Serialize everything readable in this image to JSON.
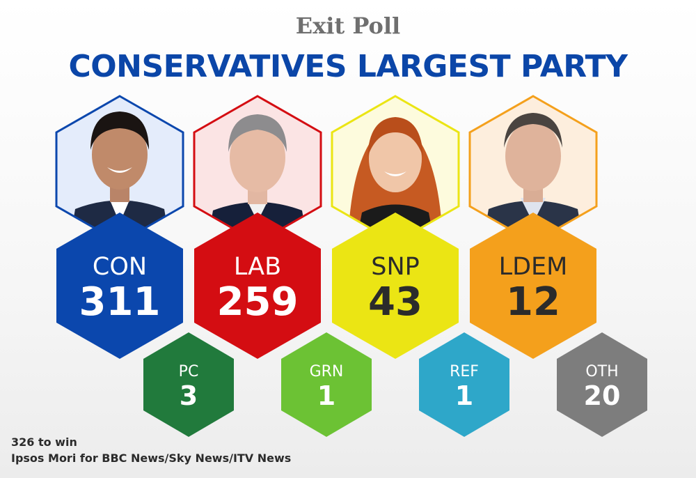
{
  "header": {
    "kicker": "Exit Poll",
    "title": "CONSERVATIVES LARGEST PARTY"
  },
  "parties_major": [
    {
      "code": "CON",
      "seats": "311",
      "color": "#0b47ad",
      "border": "#0b47ad",
      "tint": "#e4ecfb",
      "text": "#ffffff"
    },
    {
      "code": "LAB",
      "seats": "259",
      "color": "#d40d12",
      "border": "#d40d12",
      "tint": "#fbe4e4",
      "text": "#ffffff"
    },
    {
      "code": "SNP",
      "seats": "43",
      "color": "#ebe514",
      "border": "#ebe514",
      "tint": "#fdfbdd",
      "text": "#2b2b2b"
    },
    {
      "code": "LDEM",
      "seats": "12",
      "color": "#f4a01c",
      "border": "#f4a01c",
      "tint": "#fdeedd",
      "text": "#2b2b2b"
    }
  ],
  "parties_minor": [
    {
      "code": "PC",
      "seats": "3",
      "color": "#217a3c",
      "text": "#ffffff"
    },
    {
      "code": "GRN",
      "seats": "1",
      "color": "#6cc234",
      "text": "#ffffff"
    },
    {
      "code": "REF",
      "seats": "1",
      "color": "#2ea7c9",
      "text": "#ffffff"
    },
    {
      "code": "OTH",
      "seats": "20",
      "color": "#7d7d7d",
      "text": "#ffffff"
    }
  ],
  "footer": {
    "majority": "326 to win",
    "source": "Ipsos Mori for BBC News/Sky News/ITV News"
  }
}
